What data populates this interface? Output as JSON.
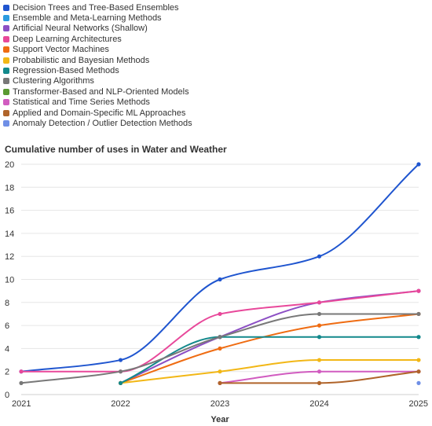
{
  "chart_data": {
    "type": "line",
    "title": "Cumulative number of uses in Water and Weather",
    "xlabel": "Year",
    "ylabel": "",
    "x": [
      2021,
      2022,
      2023,
      2024,
      2025
    ],
    "xlim": [
      2021,
      2025
    ],
    "ylim": [
      0,
      20
    ],
    "yticks": [
      0,
      2,
      4,
      6,
      8,
      10,
      12,
      14,
      16,
      18,
      20
    ],
    "grid": "horizontal",
    "legend_position": "top-left",
    "series": [
      {
        "name": "Decision Trees and Tree-Based Ensembles",
        "color": "#1f55cf",
        "points": [
          [
            2021,
            2
          ],
          [
            2022,
            3
          ],
          [
            2023,
            10
          ],
          [
            2024,
            12
          ],
          [
            2025,
            20
          ]
        ]
      },
      {
        "name": "Ensemble and Meta-Learning Methods",
        "color": "#2b9be0",
        "points": []
      },
      {
        "name": "Artificial Neural Networks (Shallow)",
        "color": "#8c4fc4",
        "points": [
          [
            2022,
            1
          ],
          [
            2023,
            5
          ],
          [
            2024,
            8
          ],
          [
            2025,
            9
          ]
        ]
      },
      {
        "name": "Deep Learning Architectures",
        "color": "#e8489a",
        "points": [
          [
            2021,
            2
          ],
          [
            2022,
            2
          ],
          [
            2023,
            7
          ],
          [
            2024,
            8
          ],
          [
            2025,
            9
          ]
        ]
      },
      {
        "name": "Support Vector Machines",
        "color": "#ef6c12",
        "points": [
          [
            2022,
            1
          ],
          [
            2023,
            4
          ],
          [
            2024,
            6
          ],
          [
            2025,
            7
          ]
        ]
      },
      {
        "name": "Probabilistic and Bayesian Methods",
        "color": "#f2b716",
        "points": [
          [
            2022,
            1
          ],
          [
            2023,
            2
          ],
          [
            2024,
            3
          ],
          [
            2025,
            3
          ]
        ]
      },
      {
        "name": "Regression-Based Methods",
        "color": "#13898c",
        "points": [
          [
            2022,
            1
          ],
          [
            2023,
            5
          ],
          [
            2024,
            5
          ],
          [
            2025,
            5
          ]
        ]
      },
      {
        "name": "Clustering Algorithms",
        "color": "#787878",
        "points": [
          [
            2021,
            1
          ],
          [
            2022,
            2
          ],
          [
            2023,
            5
          ],
          [
            2024,
            7
          ],
          [
            2025,
            7
          ]
        ]
      },
      {
        "name": "Transformer-Based and NLP-Oriented Models",
        "color": "#5a9a32",
        "points": []
      },
      {
        "name": "Statistical and Time Series Methods",
        "color": "#d15cc0",
        "points": [
          [
            2023,
            1
          ],
          [
            2024,
            2
          ],
          [
            2025,
            2
          ]
        ]
      },
      {
        "name": "Applied and Domain-Specific ML Approaches",
        "color": "#b0642a",
        "points": [
          [
            2023,
            1
          ],
          [
            2024,
            1
          ],
          [
            2025,
            2
          ]
        ]
      },
      {
        "name": "Anomaly Detection / Outlier Detection Methods",
        "color": "#6f8fe6",
        "points": [
          [
            2025,
            1
          ]
        ]
      }
    ]
  }
}
